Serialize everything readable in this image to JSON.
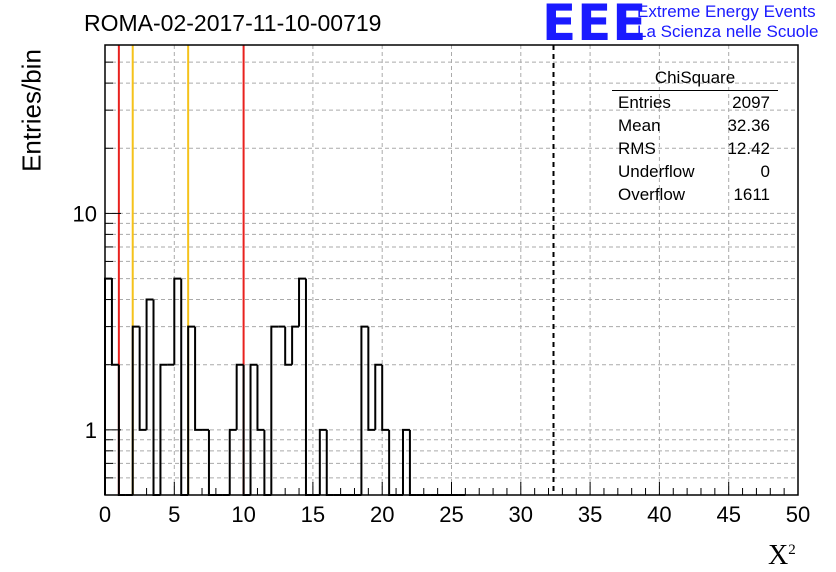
{
  "chart_data": {
    "type": "bar",
    "title": "ROMA-02-2017-11-10-00719",
    "xlabel": "X",
    "xlabel_superscript": "2",
    "ylabel": "Entries/bin",
    "ylog": true,
    "xlim": [
      0,
      50
    ],
    "ylim": [
      0.5,
      60
    ],
    "bin_width": 0.5,
    "grid": true,
    "xticks": [
      0,
      5,
      10,
      15,
      20,
      25,
      30,
      35,
      40,
      45,
      50
    ],
    "yticks": [
      1,
      10
    ],
    "values": [
      5,
      2,
      0,
      0,
      3,
      1,
      4,
      0,
      2,
      2,
      5,
      0,
      3,
      1,
      1,
      0,
      0,
      0,
      1,
      2,
      0,
      2,
      1,
      0,
      3,
      3,
      2,
      3,
      5,
      0,
      0,
      1,
      0,
      0,
      0,
      0,
      0,
      3,
      1,
      2,
      1,
      0,
      0,
      1,
      0,
      0,
      0,
      0,
      0,
      0,
      0,
      0
    ],
    "vlines": [
      {
        "x": 1,
        "color": "#e8211e",
        "style": "solid"
      },
      {
        "x": 2,
        "color": "#f5c21b",
        "style": "solid"
      },
      {
        "x": 6,
        "color": "#f5c21b",
        "style": "solid"
      },
      {
        "x": 10,
        "color": "#e8211e",
        "style": "solid"
      },
      {
        "x": 32.36,
        "color": "#000000",
        "style": "dashed"
      }
    ],
    "stats": {
      "title": "ChiSquare",
      "rows": [
        {
          "label": "Entries",
          "value": "2097"
        },
        {
          "label": "Mean",
          "value": "32.36"
        },
        {
          "label": "RMS",
          "value": "12.42"
        },
        {
          "label": "Underflow",
          "value": "0"
        },
        {
          "label": "Overflow",
          "value": "1611"
        }
      ]
    }
  },
  "logo": {
    "mark": "EEE",
    "line1": "Extreme Energy Events",
    "line2": "La Scienza nelle Scuole"
  }
}
